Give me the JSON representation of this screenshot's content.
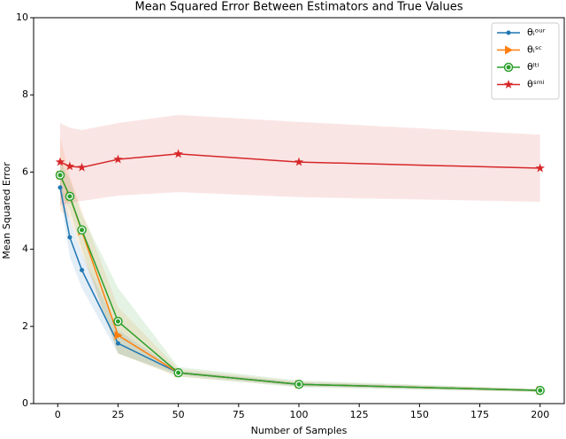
{
  "chart_data": {
    "type": "line",
    "title": "Mean Squared Error Between Estimators and True Values",
    "x_label": "Number of Samples",
    "y_label": "Mean Squared Error",
    "x": [
      1,
      5,
      10,
      25,
      50,
      100,
      200
    ],
    "xlim": [
      -10,
      210
    ],
    "xticks": [
      0,
      25,
      50,
      75,
      100,
      125,
      150,
      175,
      200
    ],
    "ylim": [
      0,
      10
    ],
    "yticks": [
      0,
      2,
      4,
      6,
      8,
      10
    ],
    "legend": "upper right",
    "series": [
      {
        "name": "θᵢᵒᵘʳ",
        "color": "#1f77b4",
        "marker": "dot",
        "values": [
          5.6,
          4.31,
          3.46,
          1.56,
          0.8,
          0.5,
          0.34
        ],
        "upper": [
          5.8,
          4.8,
          3.9,
          1.9,
          0.85,
          0.55,
          0.37
        ],
        "lower": [
          5.4,
          3.8,
          3.0,
          1.3,
          0.75,
          0.45,
          0.31
        ]
      },
      {
        "name": "θᵢˢᶜ",
        "color": "#ff7f0e",
        "marker": "triangle",
        "values": [
          5.92,
          5.37,
          4.47,
          1.77,
          0.8,
          0.5,
          0.34
        ],
        "upper": [
          6.9,
          5.9,
          5.0,
          2.5,
          0.9,
          0.57,
          0.38
        ],
        "lower": [
          5.0,
          4.8,
          3.9,
          1.3,
          0.7,
          0.45,
          0.3
        ]
      },
      {
        "name": "θˡᵗⁱ",
        "color": "#2ca02c",
        "marker": "ring",
        "values": [
          5.92,
          5.37,
          4.5,
          2.13,
          0.8,
          0.5,
          0.34
        ],
        "upper": [
          6.3,
          5.8,
          4.9,
          3.0,
          0.95,
          0.6,
          0.38
        ],
        "lower": [
          5.5,
          5.0,
          4.0,
          1.3,
          0.7,
          0.42,
          0.3
        ]
      },
      {
        "name": "θˢᵐⁱ",
        "color": "#d62728",
        "marker": "star",
        "values": [
          6.26,
          6.15,
          6.12,
          6.33,
          6.47,
          6.26,
          6.1
        ],
        "upper": [
          7.27,
          7.15,
          7.09,
          7.27,
          7.48,
          7.3,
          6.97
        ],
        "lower": [
          5.14,
          5.2,
          5.25,
          5.39,
          5.48,
          5.35,
          5.23
        ]
      }
    ]
  }
}
